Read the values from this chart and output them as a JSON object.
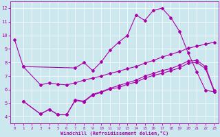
{
  "xlabel": "Windchill (Refroidissement éolien,°C)",
  "bg_color": "#cce8ee",
  "line_color": "#aa00aa",
  "grid_color": "#ffffff",
  "xlim": [
    -0.5,
    23.5
  ],
  "ylim": [
    3.5,
    12.5
  ],
  "yticks": [
    4,
    5,
    6,
    7,
    8,
    9,
    10,
    11,
    12
  ],
  "xticks": [
    0,
    1,
    2,
    3,
    4,
    5,
    6,
    7,
    8,
    9,
    10,
    11,
    12,
    13,
    14,
    15,
    16,
    17,
    18,
    19,
    20,
    21,
    22,
    23
  ],
  "line1_x": [
    0,
    1,
    7,
    8,
    9,
    10,
    11,
    12,
    13,
    14,
    15,
    16,
    17,
    18,
    19,
    20,
    21,
    22,
    23
  ],
  "line1_y": [
    9.7,
    7.7,
    7.6,
    8.0,
    7.4,
    8.05,
    8.9,
    9.5,
    10.0,
    11.5,
    11.1,
    11.85,
    12.0,
    11.3,
    10.3,
    8.7,
    7.3,
    5.95,
    5.85
  ],
  "line2_x": [
    1,
    3,
    4,
    5,
    6,
    7,
    8,
    9,
    10,
    11,
    12,
    13,
    14,
    15,
    16,
    17,
    18,
    19,
    20,
    21,
    22,
    23
  ],
  "line2_y": [
    5.15,
    4.2,
    4.55,
    4.15,
    4.15,
    5.2,
    5.1,
    5.6,
    5.8,
    6.05,
    6.15,
    6.4,
    6.55,
    6.85,
    7.05,
    7.2,
    7.4,
    7.6,
    7.95,
    8.0,
    7.55,
    5.85
  ],
  "line3_x": [
    1,
    3,
    4,
    5,
    6,
    7,
    8,
    9,
    10,
    11,
    12,
    13,
    14,
    15,
    16,
    17,
    18,
    19,
    20,
    21,
    22,
    23
  ],
  "line3_y": [
    5.15,
    4.2,
    4.55,
    4.15,
    4.15,
    5.25,
    5.15,
    5.65,
    5.85,
    6.1,
    6.3,
    6.5,
    6.7,
    7.0,
    7.2,
    7.4,
    7.55,
    7.8,
    8.1,
    8.15,
    7.7,
    5.95
  ],
  "line4_x": [
    1,
    3,
    4,
    5,
    6,
    7,
    8,
    9,
    10,
    11,
    12,
    13,
    14,
    15,
    16,
    17,
    18,
    19,
    20,
    21,
    22,
    23
  ],
  "line4_y": [
    7.7,
    6.35,
    6.5,
    6.4,
    6.35,
    6.5,
    6.7,
    6.85,
    7.0,
    7.2,
    7.35,
    7.55,
    7.7,
    7.95,
    8.15,
    8.4,
    8.6,
    8.8,
    9.05,
    9.2,
    9.35,
    9.5
  ]
}
